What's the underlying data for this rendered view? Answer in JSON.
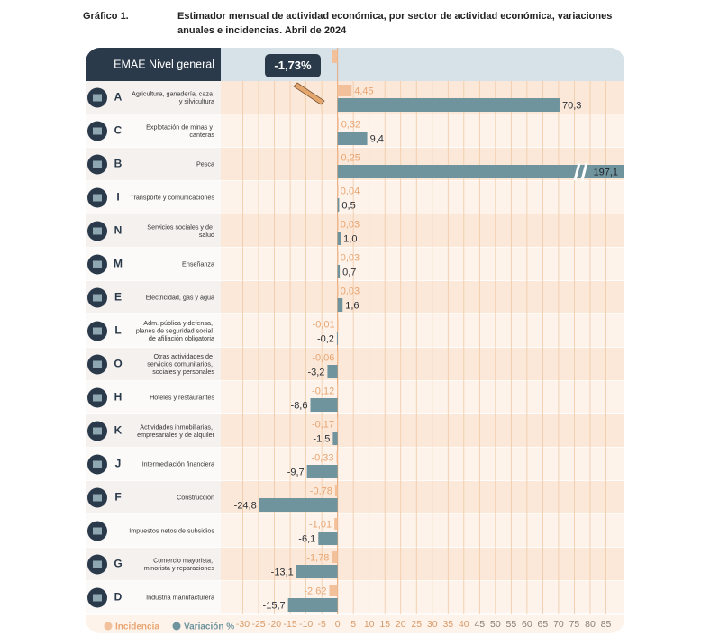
{
  "chart_data": {
    "type": "bar",
    "figure_label": "Gráfico 1.",
    "title": "Estimador mensual de actividad económica, por sector de actividad económica, variaciones anuales e incidencias. Abril de 2024",
    "total": {
      "name": "EMAE Nivel general",
      "value": -1.73,
      "label": "-1,73%"
    },
    "codes": [
      "A",
      "C",
      "B",
      "I",
      "N",
      "M",
      "E",
      "L",
      "O",
      "H",
      "K",
      "J",
      "F",
      null,
      "G",
      "D"
    ],
    "categories": [
      "Agricultura, ganadería, caza y silvicultura",
      "Explotación de minas y canteras",
      "Pesca",
      "Transporte y comunicaciones",
      "Servicios sociales y de salud",
      "Enseñanza",
      "Electricidad, gas y agua",
      "Adm. pública y defensa, planes de seguridad social de afiliación obligatoria",
      "Otras actividades de servicios comunitarios, sociales y personales",
      "Hoteles y restaurantes",
      "Actividades inmobiliarias, empresariales y de alquiler",
      "Intermediación financiera",
      "Construcción",
      "Impuestos netos de subsidios",
      "Comercio mayorista, minorista y reparaciones",
      "Industria manufacturera"
    ],
    "series": [
      {
        "name": "Incidencia",
        "color": "#f2c19b",
        "label_color": "#e9a572",
        "values": [
          4.45,
          0.32,
          0.25,
          0.04,
          0.03,
          0.03,
          0.03,
          -0.01,
          -0.06,
          -0.12,
          -0.17,
          -0.33,
          -0.78,
          -1.01,
          -1.78,
          -2.62
        ],
        "value_labels": [
          "4,45",
          "0,32",
          "0,25",
          "0,04",
          "0,03",
          "0,03",
          "0,03",
          "-0,01",
          "-0,06",
          "-0,12",
          "-0,17",
          "-0,33",
          "-0,78",
          "-1,01",
          "-1,78",
          "-2,62"
        ]
      },
      {
        "name": "Variación %",
        "color": "#6f949e",
        "label_color": "#2a2f35",
        "values": [
          70.3,
          9.4,
          197.1,
          0.5,
          1.0,
          0.7,
          1.6,
          -0.2,
          -3.2,
          -8.6,
          -1.5,
          -9.7,
          -24.8,
          -6.1,
          -13.1,
          -15.7
        ],
        "value_labels": [
          "70,3",
          "9,4",
          "197,1",
          "0,5",
          "1,0",
          "0,7",
          "1,6",
          "-0,2",
          "-3,2",
          "-8,6",
          "-1,5",
          "-9,7",
          "-24,8",
          "-6,1",
          "-13,1",
          "-15,7"
        ]
      }
    ],
    "xlim": [
      -37,
      90
    ],
    "xticks": [
      -30,
      -25,
      -20,
      -15,
      -10,
      -5,
      0,
      5,
      10,
      15,
      20,
      25,
      30,
      35,
      40,
      45,
      50,
      55,
      60,
      65,
      70,
      75,
      80,
      85
    ],
    "grid": true
  }
}
